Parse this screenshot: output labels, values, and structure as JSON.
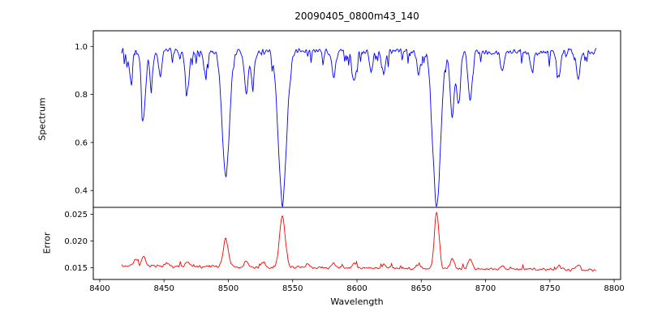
{
  "figure": {
    "background": "#ffffff"
  },
  "chart_data": {
    "type": "line",
    "title": "20090405_0800m43_140",
    "xlabel": "Wavelength",
    "xlim": [
      8395,
      8805
    ],
    "x_ticks": [
      8400,
      8450,
      8500,
      8550,
      8600,
      8650,
      8700,
      8750,
      8800
    ],
    "data_x_range": [
      8417,
      8786
    ],
    "grid": false,
    "legend": "none",
    "panels": [
      {
        "name": "spectrum",
        "ylabel": "Spectrum",
        "line_color": "#0000ff",
        "ylim": [
          0.33,
          1.065
        ],
        "y_ticks": [
          0.4,
          0.6,
          0.8,
          1.0
        ],
        "y_tick_labels": [
          "0.4",
          "0.6",
          "0.8",
          "1.0"
        ],
        "continuum": 0.98,
        "noise_amplitude": 0.017,
        "absorption_lines": [
          {
            "center": 8424,
            "depth": 0.1,
            "width": 1.4
          },
          {
            "center": 8434,
            "depth": 0.28,
            "width": 1.6
          },
          {
            "center": 8440,
            "depth": 0.12,
            "width": 1.4
          },
          {
            "center": 8447,
            "depth": 0.1,
            "width": 1.3
          },
          {
            "center": 8468,
            "depth": 0.17,
            "width": 1.6
          },
          {
            "center": 8482,
            "depth": 0.09,
            "width": 1.3
          },
          {
            "center": 8498,
            "depth": 0.52,
            "width": 2.8
          },
          {
            "center": 8514,
            "depth": 0.17,
            "width": 1.5
          },
          {
            "center": 8519,
            "depth": 0.13,
            "width": 1.4
          },
          {
            "center": 8542,
            "depth": 0.625,
            "width": 3.2
          },
          {
            "center": 8582,
            "depth": 0.11,
            "width": 1.4
          },
          {
            "center": 8598,
            "depth": 0.13,
            "width": 1.5
          },
          {
            "center": 8611,
            "depth": 0.09,
            "width": 1.3
          },
          {
            "center": 8621,
            "depth": 0.1,
            "width": 1.3
          },
          {
            "center": 8648,
            "depth": 0.09,
            "width": 1.3
          },
          {
            "center": 8662,
            "depth": 0.645,
            "width": 3.0
          },
          {
            "center": 8674,
            "depth": 0.27,
            "width": 1.6
          },
          {
            "center": 8679,
            "depth": 0.22,
            "width": 1.5
          },
          {
            "center": 8688,
            "depth": 0.21,
            "width": 1.6
          },
          {
            "center": 8713,
            "depth": 0.08,
            "width": 1.3
          },
          {
            "center": 8736,
            "depth": 0.08,
            "width": 1.3
          },
          {
            "center": 8757,
            "depth": 0.11,
            "width": 1.4
          },
          {
            "center": 8772,
            "depth": 0.12,
            "width": 1.4
          }
        ]
      },
      {
        "name": "error",
        "ylabel": "Error",
        "line_color": "#ff0000",
        "ylim": [
          0.0128,
          0.0263
        ],
        "y_ticks": [
          0.015,
          0.02,
          0.025
        ],
        "y_tick_labels": [
          "0.015",
          "0.020",
          "0.025"
        ],
        "baseline_start": 0.0153,
        "baseline_end": 0.0146,
        "noise_amplitude": 0.00032,
        "peaks": [
          {
            "center": 8428,
            "height": 0.0012,
            "width": 1.5
          },
          {
            "center": 8434,
            "height": 0.0018,
            "width": 1.5
          },
          {
            "center": 8452,
            "height": 0.0008,
            "width": 1.4
          },
          {
            "center": 8468,
            "height": 0.0009,
            "width": 1.4
          },
          {
            "center": 8498,
            "height": 0.0052,
            "width": 2.0
          },
          {
            "center": 8514,
            "height": 0.0012,
            "width": 1.5
          },
          {
            "center": 8527,
            "height": 0.0009,
            "width": 1.4
          },
          {
            "center": 8542,
            "height": 0.0097,
            "width": 2.2
          },
          {
            "center": 8562,
            "height": 0.0007,
            "width": 1.4
          },
          {
            "center": 8582,
            "height": 0.0007,
            "width": 1.4
          },
          {
            "center": 8598,
            "height": 0.0008,
            "width": 1.4
          },
          {
            "center": 8621,
            "height": 0.0007,
            "width": 1.4
          },
          {
            "center": 8648,
            "height": 0.0007,
            "width": 1.4
          },
          {
            "center": 8662,
            "height": 0.0107,
            "width": 1.8
          },
          {
            "center": 8674,
            "height": 0.0018,
            "width": 1.5
          },
          {
            "center": 8688,
            "height": 0.002,
            "width": 1.5
          },
          {
            "center": 8713,
            "height": 0.0006,
            "width": 1.3
          },
          {
            "center": 8757,
            "height": 0.0007,
            "width": 1.3
          },
          {
            "center": 8772,
            "height": 0.0008,
            "width": 1.3
          }
        ]
      }
    ]
  }
}
